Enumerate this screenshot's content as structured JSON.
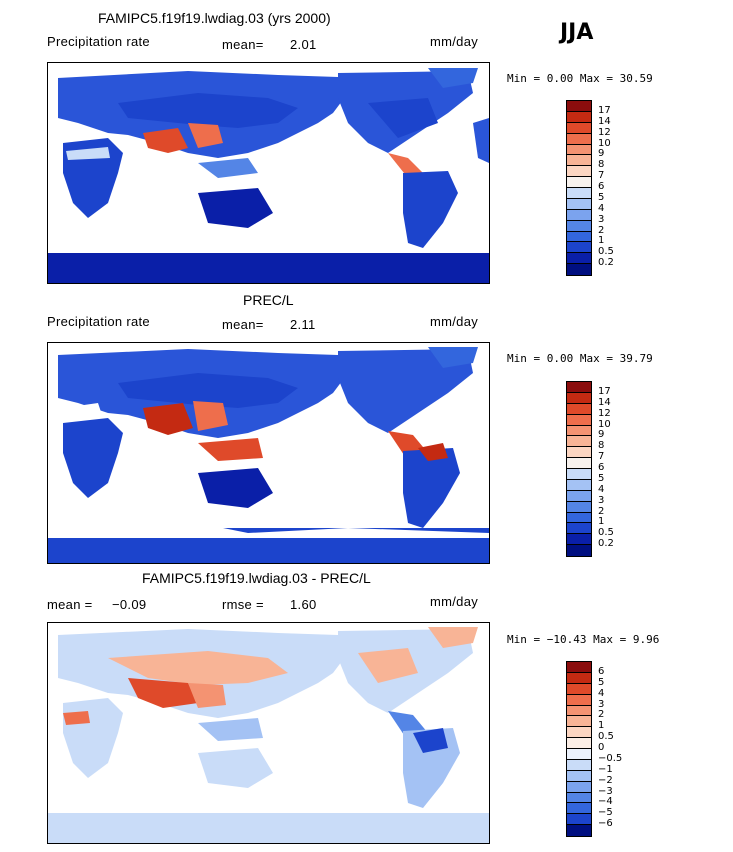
{
  "season": "JJA",
  "panels": [
    {
      "title": "FAMIPC5.f19f19.lwdiag.03 (yrs 2000)",
      "left_label": "Precipitation rate",
      "center_label": "mean=",
      "center_value": "2.01",
      "units": "mm/day",
      "stats": "Min =   0.00 Max =  30.59",
      "scale": "abs"
    },
    {
      "title": "PREC/L",
      "left_label": "Precipitation rate",
      "center_label": "mean=",
      "center_value": "2.11",
      "units": "mm/day",
      "stats": "Min =   0.00 Max =  39.79",
      "scale": "abs"
    },
    {
      "title": "FAMIPC5.f19f19.lwdiag.03 - PREC/L",
      "left_label": "mean =",
      "left_value": "−0.09",
      "center_label": "rmse =",
      "center_value": "1.60",
      "units": "mm/day",
      "stats": "Min = −10.43 Max =   9.96",
      "scale": "diff"
    }
  ],
  "colorbar_abs": {
    "labels": [
      "17",
      "14",
      "12",
      "10",
      "9",
      "8",
      "7",
      "6",
      "5",
      "4",
      "3",
      "2",
      "1",
      "0.5",
      "0.2"
    ],
    "colors": [
      "#8b0d0d",
      "#c42a12",
      "#df4a2a",
      "#ee6e4c",
      "#f49372",
      "#f8b496",
      "#fcd6c2",
      "#f7f2ee",
      "#c9dcf8",
      "#a4c2f4",
      "#7ba3ee",
      "#5485e6",
      "#3366dd",
      "#1c44cc",
      "#0a1fa8",
      "#000f80"
    ]
  },
  "colorbar_diff": {
    "labels": [
      "6",
      "5",
      "4",
      "3",
      "2",
      "1",
      "0.5",
      "0",
      "−0.5",
      "−1",
      "−2",
      "−3",
      "−4",
      "−5",
      "−6"
    ],
    "colors": [
      "#8b0d0d",
      "#c42a12",
      "#df4a2a",
      "#ee6e4c",
      "#f49372",
      "#f8b496",
      "#fcd6c2",
      "#fbeee6",
      "#ecf2fc",
      "#c9dcf8",
      "#a4c2f4",
      "#7ba3ee",
      "#5485e6",
      "#3366dd",
      "#1c44cc",
      "#000f80"
    ]
  }
}
